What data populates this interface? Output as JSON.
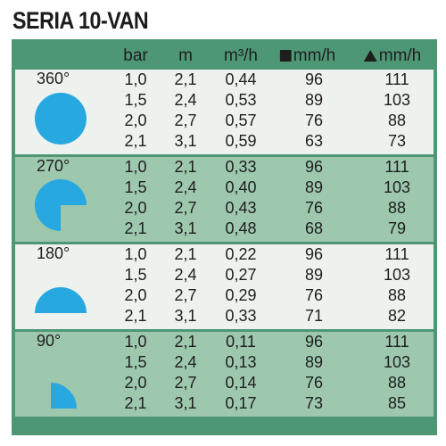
{
  "title": "SERIA 10-VAN",
  "headers": {
    "bar": "bar",
    "m": "m",
    "flow": "m³/h",
    "square_rate": "mm/h",
    "triangle_rate": "mm/h"
  },
  "colors": {
    "frame": "#4e9775",
    "light_row": "#eef2ee",
    "dark_row": "#9dc8ae",
    "icon": "#27a8e0"
  },
  "groups": [
    {
      "angle": "360°",
      "shape": "full-circle-icon",
      "rows": [
        {
          "bar": "1,0",
          "m": "2,1",
          "flow": "0,44",
          "sq": "96",
          "tri": "111"
        },
        {
          "bar": "1,5",
          "m": "2,4",
          "flow": "0,53",
          "sq": "89",
          "tri": "103"
        },
        {
          "bar": "2,0",
          "m": "2,7",
          "flow": "0,57",
          "sq": "76",
          "tri": "88"
        },
        {
          "bar": "2,1",
          "m": "3,1",
          "flow": "0,59",
          "sq": "63",
          "tri": "73"
        }
      ]
    },
    {
      "angle": "270°",
      "shape": "three-quarter-circle-icon",
      "rows": [
        {
          "bar": "1,0",
          "m": "2,1",
          "flow": "0,33",
          "sq": "96",
          "tri": "111"
        },
        {
          "bar": "1,5",
          "m": "2,4",
          "flow": "0,40",
          "sq": "89",
          "tri": "103"
        },
        {
          "bar": "2,0",
          "m": "2,7",
          "flow": "0,43",
          "sq": "76",
          "tri": "88"
        },
        {
          "bar": "2,1",
          "m": "3,1",
          "flow": "0,48",
          "sq": "68",
          "tri": "79"
        }
      ]
    },
    {
      "angle": "180°",
      "shape": "half-circle-icon",
      "rows": [
        {
          "bar": "1,0",
          "m": "2,1",
          "flow": "0,22",
          "sq": "96",
          "tri": "111"
        },
        {
          "bar": "1,5",
          "m": "2,4",
          "flow": "0,27",
          "sq": "89",
          "tri": "103"
        },
        {
          "bar": "2,0",
          "m": "2,7",
          "flow": "0,29",
          "sq": "76",
          "tri": "88"
        },
        {
          "bar": "2,1",
          "m": "3,1",
          "flow": "0,33",
          "sq": "71",
          "tri": "82"
        }
      ]
    },
    {
      "angle": "90°",
      "shape": "quarter-circle-icon",
      "rows": [
        {
          "bar": "1,0",
          "m": "2,1",
          "flow": "0,11",
          "sq": "96",
          "tri": "111"
        },
        {
          "bar": "1,5",
          "m": "2,4",
          "flow": "0,13",
          "sq": "89",
          "tri": "103"
        },
        {
          "bar": "2,0",
          "m": "2,7",
          "flow": "0,14",
          "sq": "76",
          "tri": "88"
        },
        {
          "bar": "2,1",
          "m": "3,1",
          "flow": "0,17",
          "sq": "73",
          "tri": "85"
        }
      ]
    }
  ]
}
